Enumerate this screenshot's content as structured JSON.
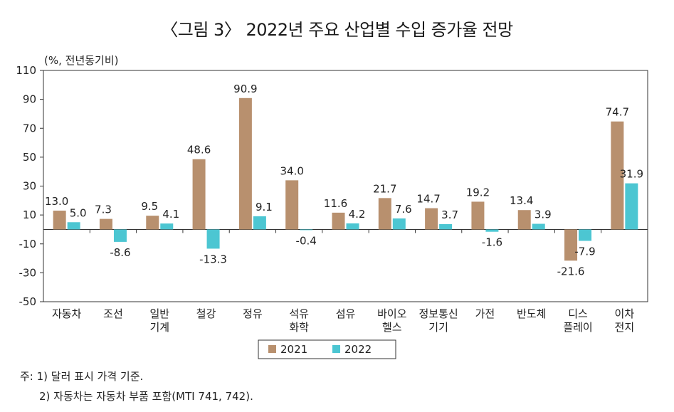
{
  "chart_data": {
    "type": "bar",
    "title": "〈그림 3〉 2022년 주요 산업별 수입 증가율 전망",
    "ylabel": "(%, 전년동기비)",
    "xlabel": "",
    "ylim": [
      -50,
      110
    ],
    "yticks": [
      110,
      90,
      70,
      50,
      30,
      10,
      -10,
      -30,
      -50
    ],
    "categories": [
      [
        "자동차"
      ],
      [
        "조선"
      ],
      [
        "일반",
        "기계"
      ],
      [
        "철강"
      ],
      [
        "정유"
      ],
      [
        "석유",
        "화학"
      ],
      [
        "섬유"
      ],
      [
        "바이오",
        "헬스"
      ],
      [
        "정보통신",
        "기기"
      ],
      [
        "가전"
      ],
      [
        "반도체"
      ],
      [
        "디스",
        "플레이"
      ],
      [
        "이차",
        "전지"
      ]
    ],
    "series": [
      {
        "name": "2021",
        "color": "#b8906e",
        "values": [
          13.0,
          7.3,
          9.5,
          48.6,
          90.9,
          34.0,
          11.6,
          21.7,
          14.7,
          19.2,
          13.4,
          -21.6,
          74.7
        ],
        "labels": [
          "13.0",
          "7.3",
          "9.5",
          "48.6",
          "90.9",
          "34.0",
          "11.6",
          "21.7",
          "14.7",
          "19.2",
          "13.4",
          "-21.6",
          "74.7"
        ]
      },
      {
        "name": "2022",
        "color": "#4cc6d2",
        "values": [
          5.0,
          -8.6,
          4.1,
          -13.3,
          9.1,
          -0.4,
          4.2,
          7.6,
          3.7,
          -1.6,
          3.9,
          -7.9,
          31.9
        ],
        "labels": [
          "5.0",
          "-8.6",
          "4.1",
          "-13.3",
          "9.1",
          "-0.4",
          "4.2",
          "7.6",
          "3.7",
          "-1.6",
          "3.9",
          "-7.9",
          "31.9"
        ]
      }
    ],
    "legend": "bottom-center",
    "grid": false
  },
  "notes": {
    "line1": "주: 1) 달러 표시 가격 기준.",
    "line2": "2) 자동차는 자동차 부품 포함(MTI 741, 742)."
  }
}
